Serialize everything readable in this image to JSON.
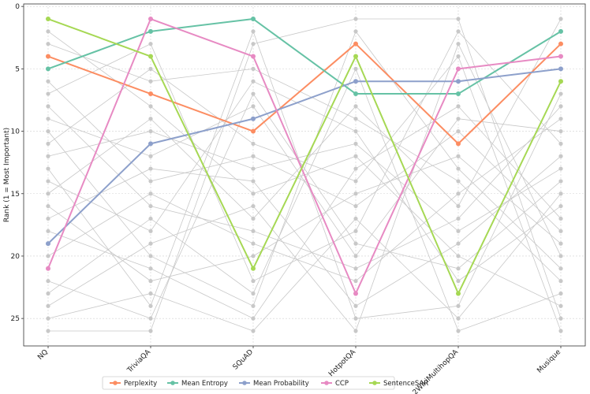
{
  "chart_data": {
    "type": "line",
    "title": "",
    "xlabel": "",
    "ylabel": "Rank (1 = Most Important)",
    "categories": [
      "NQ",
      "TriviaQA",
      "SQuAD",
      "HotpotQA",
      "2WikiMultihopQA",
      "Musique"
    ],
    "ylim": [
      27.2,
      -0.2
    ],
    "yticks": [
      0,
      5,
      10,
      15,
      20,
      25
    ],
    "grid": true,
    "legend_position": "bottom-center",
    "series": [
      {
        "name": "Perplexity",
        "color": "#fc8d62",
        "values": [
          4,
          7,
          10,
          3,
          11,
          3
        ]
      },
      {
        "name": "Mean Entropy",
        "color": "#66c2a5",
        "values": [
          5,
          2,
          1,
          7,
          7,
          2
        ]
      },
      {
        "name": "Mean Probability",
        "color": "#8da0cb",
        "values": [
          19,
          11,
          9,
          6,
          6,
          5
        ]
      },
      {
        "name": "CCP",
        "color": "#e78ac3",
        "values": [
          21,
          1,
          4,
          23,
          5,
          4
        ]
      },
      {
        "name": "SentenceSAR",
        "color": "#a6d854",
        "values": [
          1,
          4,
          21,
          4,
          23,
          6
        ]
      }
    ],
    "background_series": [
      [
        2,
        8,
        15,
        12,
        20,
        24
      ],
      [
        3,
        6,
        5,
        9,
        14,
        22
      ],
      [
        6,
        14,
        12,
        16,
        10,
        18
      ],
      [
        7,
        3,
        22,
        18,
        2,
        11
      ],
      [
        8,
        16,
        18,
        21,
        17,
        8
      ],
      [
        9,
        12,
        8,
        20,
        9,
        10
      ],
      [
        10,
        20,
        24,
        2,
        13,
        21
      ],
      [
        11,
        5,
        11,
        14,
        4,
        26
      ],
      [
        12,
        10,
        13,
        11,
        18,
        13
      ],
      [
        13,
        24,
        2,
        25,
        24,
        7
      ],
      [
        14,
        18,
        6,
        10,
        22,
        16
      ],
      [
        15,
        9,
        17,
        8,
        16,
        1
      ],
      [
        16,
        22,
        20,
        15,
        12,
        19
      ],
      [
        17,
        13,
        14,
        24,
        19,
        12
      ],
      [
        18,
        21,
        25,
        13,
        8,
        17
      ],
      [
        20,
        15,
        19,
        22,
        15,
        9
      ],
      [
        22,
        25,
        7,
        19,
        21,
        14
      ],
      [
        23,
        17,
        23,
        5,
        26,
        23
      ],
      [
        24,
        19,
        16,
        26,
        3,
        20
      ],
      [
        25,
        23,
        26,
        17,
        25,
        15
      ],
      [
        26,
        26,
        3,
        1,
        1,
        25
      ]
    ]
  }
}
